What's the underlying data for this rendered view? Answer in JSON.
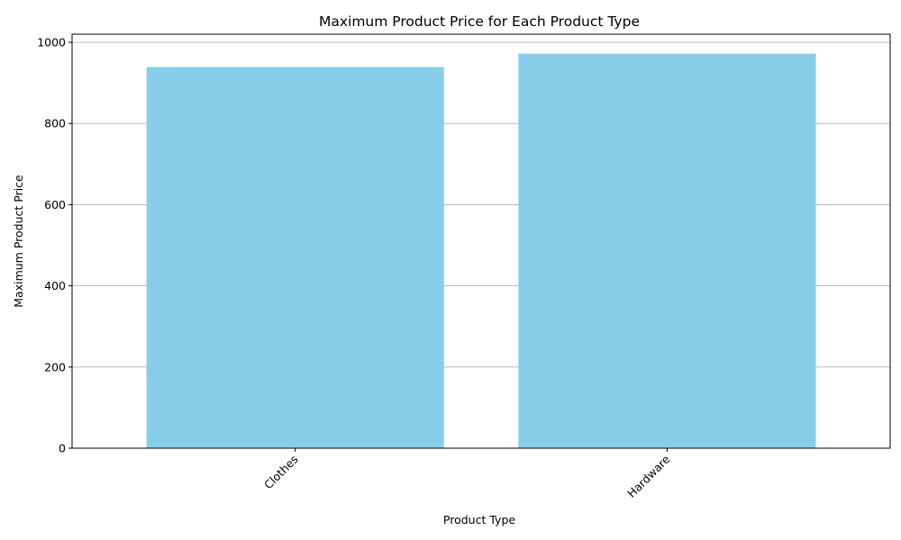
{
  "chart_data": {
    "type": "bar",
    "title": "Maximum Product Price for Each Product Type",
    "xlabel": "Product Type",
    "ylabel": "Maximum Product Price",
    "categories": [
      "Clothes",
      "Hardware"
    ],
    "values": [
      939,
      972
    ],
    "ylim": [
      0,
      1020
    ],
    "yticks": [
      0,
      200,
      400,
      600,
      800,
      1000
    ],
    "grid": "horizontal",
    "bar_color": "#87CEEB",
    "grid_color": "#b0b0b0",
    "x_tick_rotation_deg": 45
  }
}
